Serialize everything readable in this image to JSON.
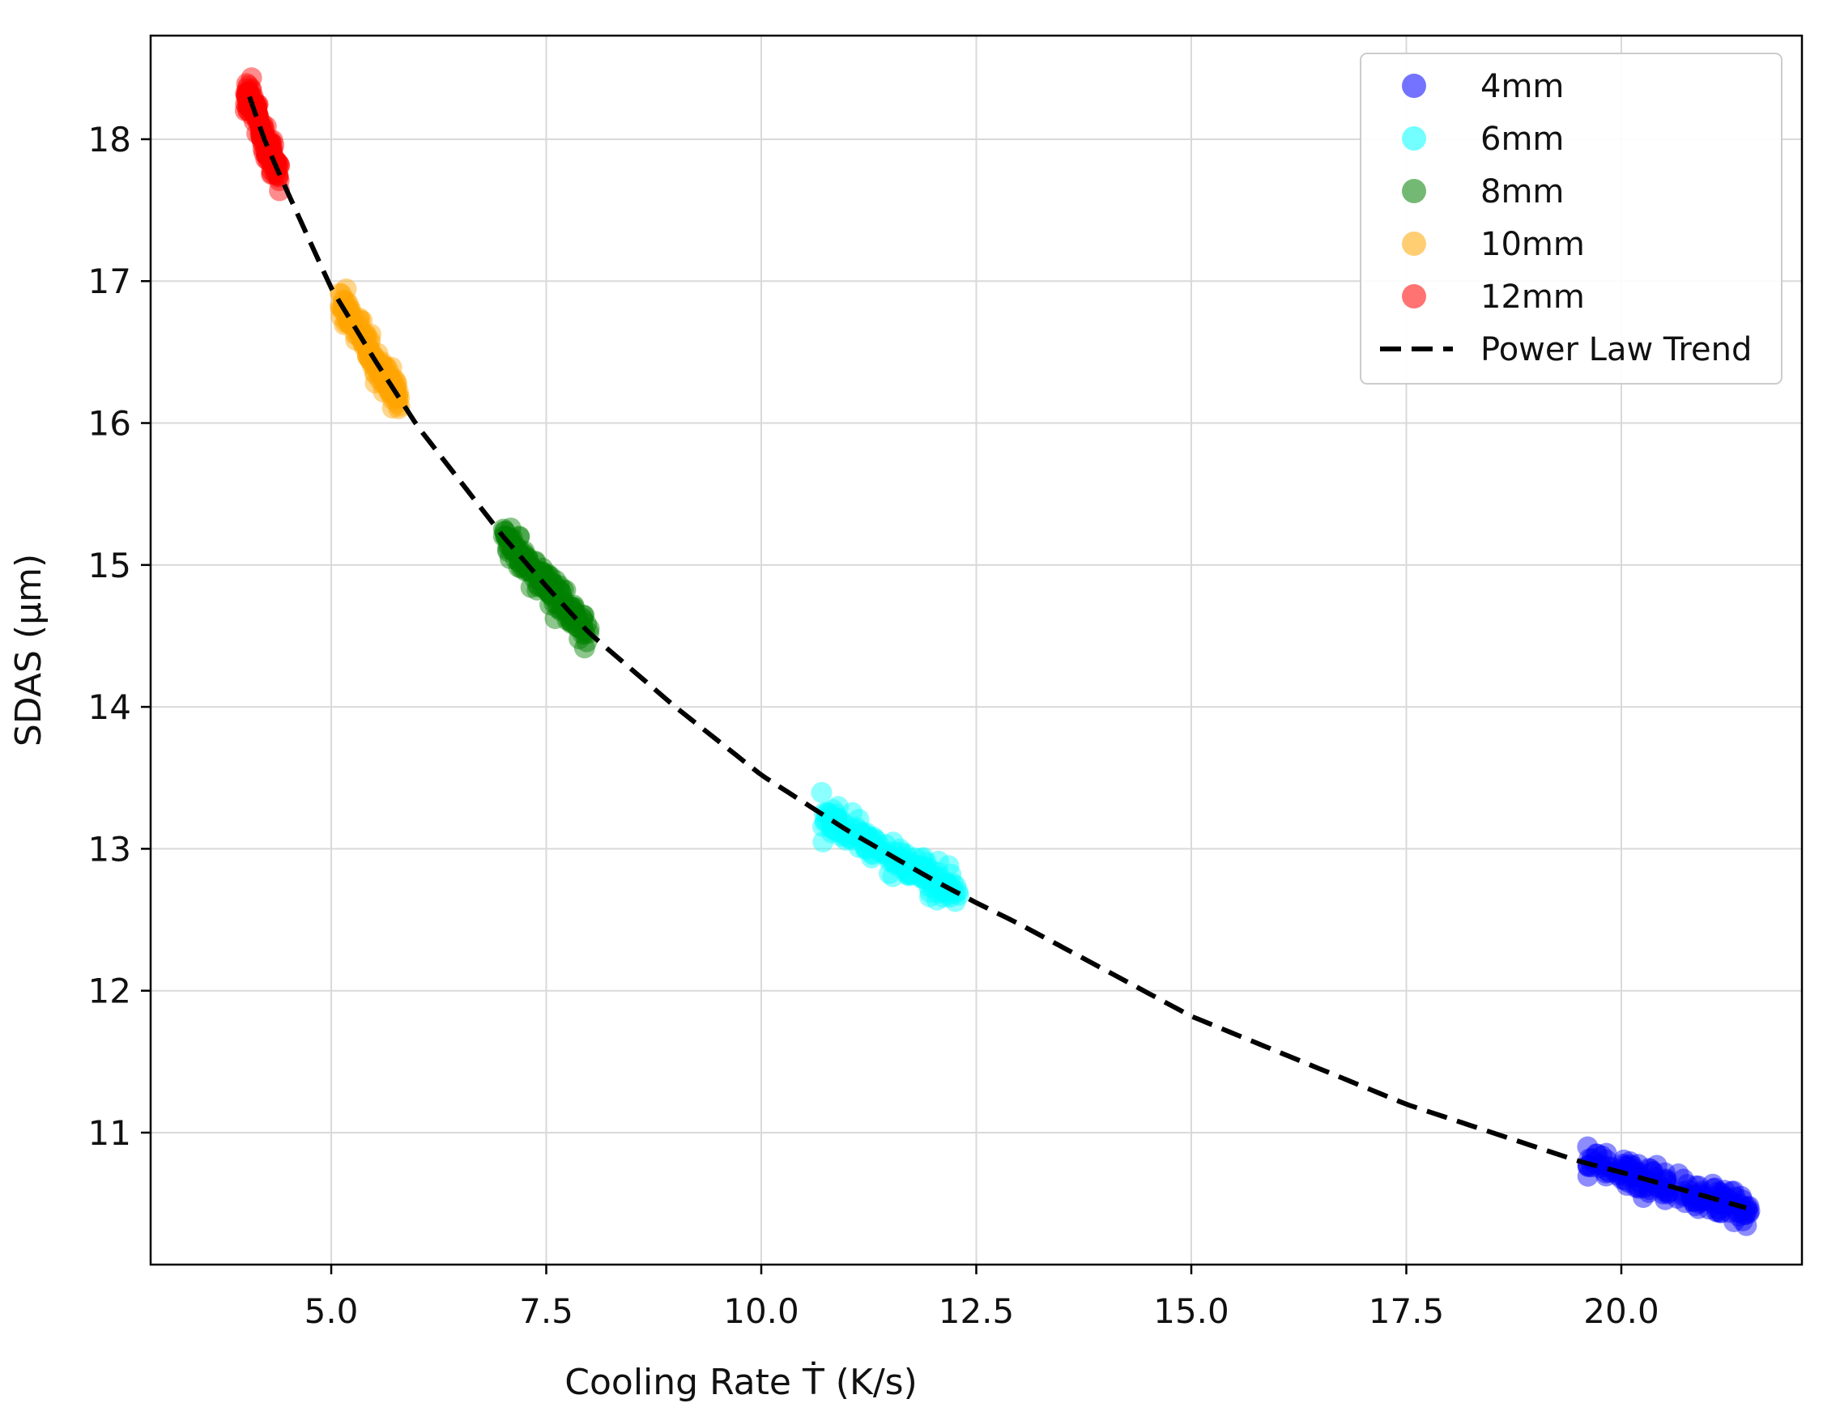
{
  "chart_data": {
    "type": "scatter",
    "title": "",
    "xlabel": "Cooling Rate Ṫ (K/s)",
    "ylabel": "SDAS (μm)",
    "xlim": [
      2.9,
      22.1
    ],
    "ylim": [
      10.07,
      18.73
    ],
    "x_ticks": [
      "5.0",
      "7.5",
      "10.0",
      "12.5",
      "15.0",
      "17.5",
      "20.0"
    ],
    "x_tick_values": [
      5.0,
      7.5,
      10.0,
      12.5,
      15.0,
      17.5,
      20.0
    ],
    "y_ticks": [
      "11",
      "12",
      "13",
      "14",
      "15",
      "16",
      "17",
      "18"
    ],
    "y_tick_values": [
      11,
      12,
      13,
      14,
      15,
      16,
      17,
      18
    ],
    "grid": true,
    "legend_position": "top-right",
    "series": [
      {
        "name": "4mm",
        "color": "#0000ff",
        "x_range": [
          19.6,
          21.5
        ],
        "center": [
          20.5,
          10.62
        ],
        "count": 160
      },
      {
        "name": "6mm",
        "color": "#00ffff",
        "x_range": [
          10.7,
          12.3
        ],
        "center": [
          11.4,
          12.95
        ],
        "count": 160
      },
      {
        "name": "8mm",
        "color": "#008000",
        "x_range": [
          7.0,
          8.0
        ],
        "center": [
          7.5,
          14.85
        ],
        "count": 160
      },
      {
        "name": "10mm",
        "color": "#ffa500",
        "x_range": [
          5.1,
          5.8
        ],
        "center": [
          5.45,
          16.55
        ],
        "count": 160
      },
      {
        "name": "12mm",
        "color": "#ff0000",
        "x_range": [
          4.0,
          4.4
        ],
        "center": [
          4.2,
          18.05
        ],
        "count": 160
      }
    ],
    "trend": {
      "name": "Power Law Trend",
      "style": "dashed",
      "color": "#000000",
      "x_range": [
        4.05,
        21.45
      ],
      "points": [
        [
          4.05,
          18.3
        ],
        [
          4.2,
          18.03
        ],
        [
          4.4,
          17.75
        ],
        [
          5.0,
          16.95
        ],
        [
          5.5,
          16.45
        ],
        [
          6.0,
          15.98
        ],
        [
          7.0,
          15.2
        ],
        [
          7.5,
          14.85
        ],
        [
          8.0,
          14.52
        ],
        [
          9.0,
          14.0
        ],
        [
          10.0,
          13.52
        ],
        [
          11.0,
          13.13
        ],
        [
          12.0,
          12.78
        ],
        [
          12.5,
          12.62
        ],
        [
          13.0,
          12.47
        ],
        [
          15.0,
          11.82
        ],
        [
          17.5,
          11.2
        ],
        [
          19.5,
          10.8
        ],
        [
          20.0,
          10.72
        ],
        [
          21.45,
          10.47
        ]
      ]
    }
  }
}
